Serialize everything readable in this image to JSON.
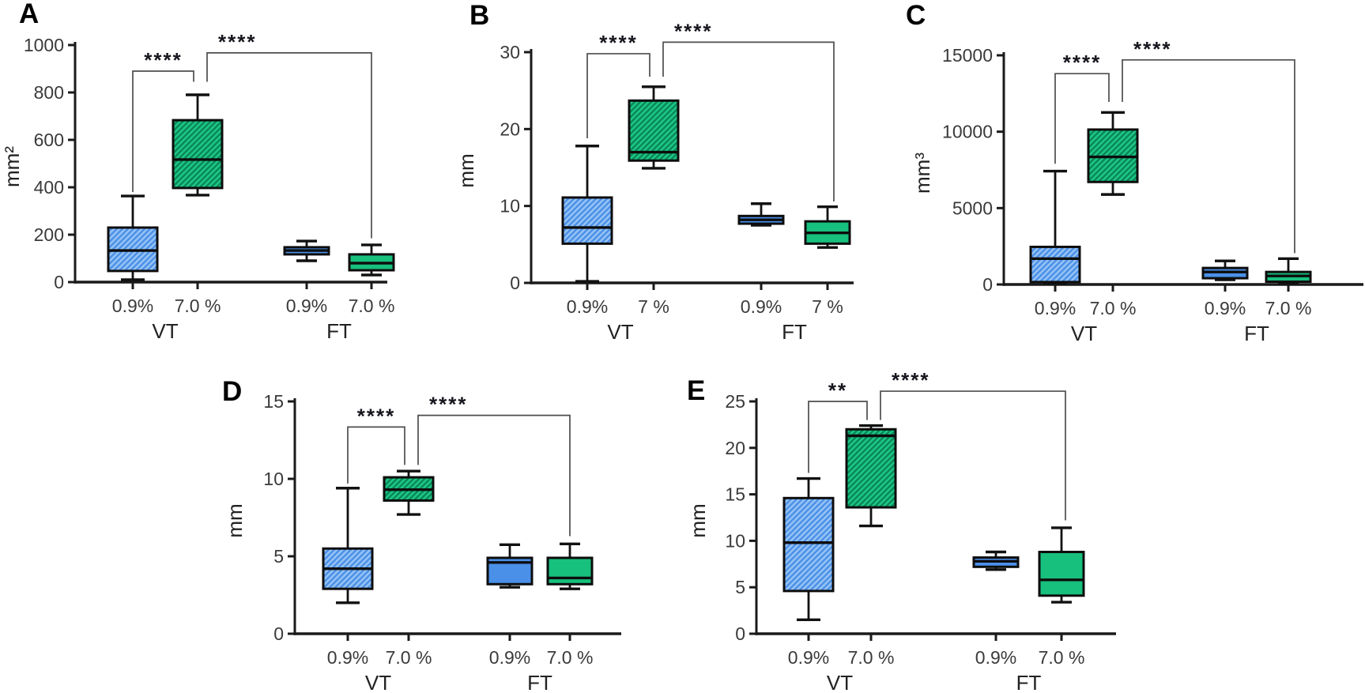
{
  "colors": {
    "background": "#ffffff",
    "blue_fill": "#4a8fe6",
    "blue_stripe": "#93c2f5",
    "green_fill": "#1ec98a",
    "green_stripe": "#0a8a58",
    "solid_blue": "#4a90e8",
    "solid_green": "#17c07d",
    "box_border": "#0d0d0d",
    "median": "#0d0d0d",
    "whisker": "#111111",
    "axis": "#1a1a1a",
    "tick_text": "#3a3a3a",
    "group_text": "#222222",
    "bracket": "#4d4d4d",
    "stars": "#16161e"
  },
  "chart_data": [
    {
      "type": "box",
      "panel": "A",
      "ylabel": "mm²",
      "ylim": [
        0,
        1000
      ],
      "yticks": [
        0,
        200,
        400,
        600,
        800,
        1000
      ],
      "categories": [
        "0.9%",
        "7.0 %",
        "0.9%",
        "7.0 %"
      ],
      "group_labels": [
        "VT",
        "FT"
      ],
      "series": [
        {
          "group": "VT",
          "category": "0.9%",
          "style": "blue-hatched",
          "whislo": 10,
          "q1": 47,
          "med": 133,
          "q3": 230,
          "whishi": 363
        },
        {
          "group": "VT",
          "category": "7.0 %",
          "style": "green-hatched",
          "whislo": 367,
          "q1": 397,
          "med": 517,
          "q3": 683,
          "whishi": 790
        },
        {
          "group": "FT",
          "category": "0.9%",
          "style": "blue-solid",
          "whislo": 90,
          "q1": 117,
          "med": 133,
          "q3": 147,
          "whishi": 173
        },
        {
          "group": "FT",
          "category": "7.0 %",
          "style": "green-solid",
          "whislo": 30,
          "q1": 50,
          "med": 80,
          "q3": 117,
          "whishi": 157
        }
      ],
      "significance": [
        {
          "from": 0,
          "to": 1,
          "label": "****",
          "bar_y": 890,
          "leg_from_y": 380,
          "leg_to_y": 845,
          "label_anchor": "mid"
        },
        {
          "from": 1,
          "to": 3,
          "label": "****",
          "bar_y": 967,
          "leg_from_y": 845,
          "leg_to_y": 185,
          "label_anchor": "left"
        }
      ]
    },
    {
      "type": "box",
      "panel": "B",
      "ylabel": "mm",
      "ylim": [
        0,
        30
      ],
      "yticks": [
        0,
        10,
        20,
        30
      ],
      "categories": [
        "0.9%",
        "7 %",
        "0.9%",
        "7 %"
      ],
      "group_labels": [
        "VT",
        "FT"
      ],
      "series": [
        {
          "group": "VT",
          "category": "0.9%",
          "style": "blue-hatched",
          "whislo": 0.2,
          "q1": 5.1,
          "med": 7.2,
          "q3": 11.1,
          "whishi": 17.8
        },
        {
          "group": "VT",
          "category": "7 %",
          "style": "green-hatched",
          "whislo": 14.9,
          "q1": 15.9,
          "med": 17.0,
          "q3": 23.7,
          "whishi": 25.5
        },
        {
          "group": "FT",
          "category": "0.9%",
          "style": "blue-solid",
          "whislo": 7.5,
          "q1": 7.7,
          "med": 8.2,
          "q3": 8.7,
          "whishi": 10.3
        },
        {
          "group": "FT",
          "category": "7 %",
          "style": "green-solid",
          "whislo": 4.6,
          "q1": 5.1,
          "med": 6.5,
          "q3": 8.0,
          "whishi": 9.9
        }
      ],
      "significance": [
        {
          "from": 0,
          "to": 1,
          "label": "****",
          "bar_y": 29.8,
          "leg_from_y": 18.8,
          "leg_to_y": 26.8,
          "label_anchor": "mid"
        },
        {
          "from": 1,
          "to": 3,
          "label": "****",
          "bar_y": 31.3,
          "leg_from_y": 26.8,
          "leg_to_y": 10.6,
          "label_anchor": "left"
        }
      ]
    },
    {
      "type": "box",
      "panel": "C",
      "ylabel": "mm³",
      "ylim": [
        0,
        15000
      ],
      "yticks": [
        0,
        5000,
        10000,
        15000
      ],
      "categories": [
        "0.9%",
        "7.0 %",
        "0.9%",
        "7.0 %"
      ],
      "group_labels": [
        "VT",
        "FT"
      ],
      "series": [
        {
          "group": "VT",
          "category": "0.9%",
          "style": "blue-hatched",
          "whislo": 80,
          "q1": 160,
          "med": 1690,
          "q3": 2460,
          "whishi": 7420
        },
        {
          "group": "VT",
          "category": "7.0 %",
          "style": "green-hatched",
          "whislo": 5890,
          "q1": 6710,
          "med": 8350,
          "q3": 10140,
          "whishi": 11260
        },
        {
          "group": "FT",
          "category": "0.9%",
          "style": "blue-solid",
          "whislo": 310,
          "q1": 410,
          "med": 820,
          "q3": 1080,
          "whishi": 1540
        },
        {
          "group": "FT",
          "category": "7.0 %",
          "style": "green-solid",
          "whislo": 60,
          "q1": 180,
          "med": 560,
          "q3": 820,
          "whishi": 1690
        }
      ],
      "significance": [
        {
          "from": 0,
          "to": 1,
          "label": "****",
          "bar_y": 13800,
          "leg_from_y": 7900,
          "leg_to_y": 11950,
          "label_anchor": "mid"
        },
        {
          "from": 1,
          "to": 3,
          "label": "****",
          "bar_y": 14700,
          "leg_from_y": 11950,
          "leg_to_y": 2050,
          "label_anchor": "left"
        }
      ]
    },
    {
      "type": "box",
      "panel": "D",
      "ylabel": "mm",
      "ylim": [
        0,
        15
      ],
      "yticks": [
        0,
        5,
        10,
        15
      ],
      "categories": [
        "0.9%",
        "7.0 %",
        "0.9%",
        "7.0 %"
      ],
      "group_labels": [
        "VT",
        "FT"
      ],
      "series": [
        {
          "group": "VT",
          "category": "0.9%",
          "style": "blue-hatched",
          "whislo": 2.0,
          "q1": 2.9,
          "med": 4.2,
          "q3": 5.5,
          "whishi": 9.4
        },
        {
          "group": "VT",
          "category": "7.0 %",
          "style": "green-hatched",
          "whislo": 7.7,
          "q1": 8.6,
          "med": 9.3,
          "q3": 10.1,
          "whishi": 10.5
        },
        {
          "group": "FT",
          "category": "0.9%",
          "style": "blue-solid",
          "whislo": 3.0,
          "q1": 3.2,
          "med": 4.6,
          "q3": 4.9,
          "whishi": 5.75
        },
        {
          "group": "FT",
          "category": "7.0 %",
          "style": "green-solid",
          "whislo": 2.9,
          "q1": 3.2,
          "med": 3.6,
          "q3": 4.9,
          "whishi": 5.8
        }
      ],
      "significance": [
        {
          "from": 0,
          "to": 1,
          "label": "****",
          "bar_y": 13.35,
          "leg_from_y": 9.7,
          "leg_to_y": 10.9,
          "label_anchor": "mid"
        },
        {
          "from": 1,
          "to": 3,
          "label": "****",
          "bar_y": 14.1,
          "leg_from_y": 10.9,
          "leg_to_y": 6.3,
          "label_anchor": "left"
        }
      ]
    },
    {
      "type": "box",
      "panel": "E",
      "ylabel": "mm",
      "ylim": [
        0,
        25
      ],
      "yticks": [
        0,
        5,
        10,
        15,
        20,
        25
      ],
      "categories": [
        "0.9%",
        "7.0 %",
        "0.9%",
        "7.0 %"
      ],
      "group_labels": [
        "VT",
        "FT"
      ],
      "series": [
        {
          "group": "VT",
          "category": "0.9%",
          "style": "blue-hatched",
          "whislo": 1.5,
          "q1": 4.6,
          "med": 9.8,
          "q3": 14.6,
          "whishi": 16.7
        },
        {
          "group": "VT",
          "category": "7.0 %",
          "style": "green-hatched",
          "whislo": 11.6,
          "q1": 13.6,
          "med": 21.3,
          "q3": 22.0,
          "whishi": 22.4
        },
        {
          "group": "FT",
          "category": "0.9%",
          "style": "blue-solid",
          "whislo": 6.9,
          "q1": 7.2,
          "med": 7.8,
          "q3": 8.2,
          "whishi": 8.8
        },
        {
          "group": "FT",
          "category": "7.0 %",
          "style": "green-solid",
          "whislo": 3.4,
          "q1": 4.1,
          "med": 5.8,
          "q3": 8.8,
          "whishi": 11.4
        }
      ],
      "significance": [
        {
          "from": 0,
          "to": 1,
          "label": "**",
          "bar_y": 25.0,
          "leg_from_y": 17.3,
          "leg_to_y": 23.0,
          "label_anchor": "mid"
        },
        {
          "from": 1,
          "to": 3,
          "label": "****",
          "bar_y": 26.1,
          "leg_from_y": 23.0,
          "leg_to_y": 12.2,
          "label_anchor": "left"
        }
      ]
    }
  ]
}
